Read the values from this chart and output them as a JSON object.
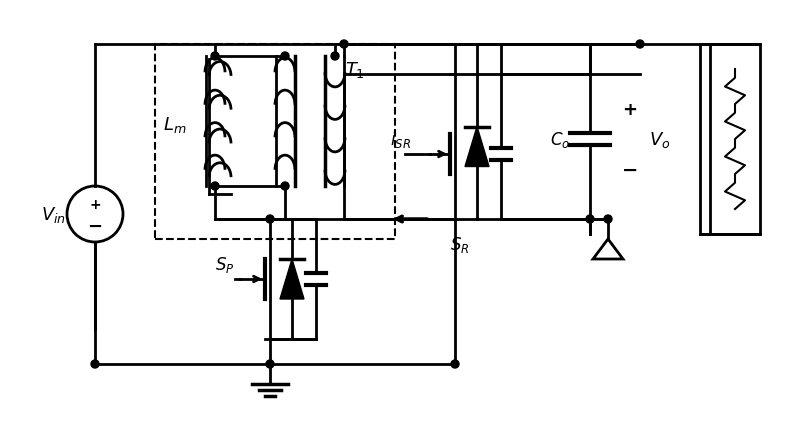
{
  "figsize": [
    7.85,
    4.35
  ],
  "dpi": 100,
  "background": "white",
  "linewidth": 2.0,
  "linecolor": "black"
}
